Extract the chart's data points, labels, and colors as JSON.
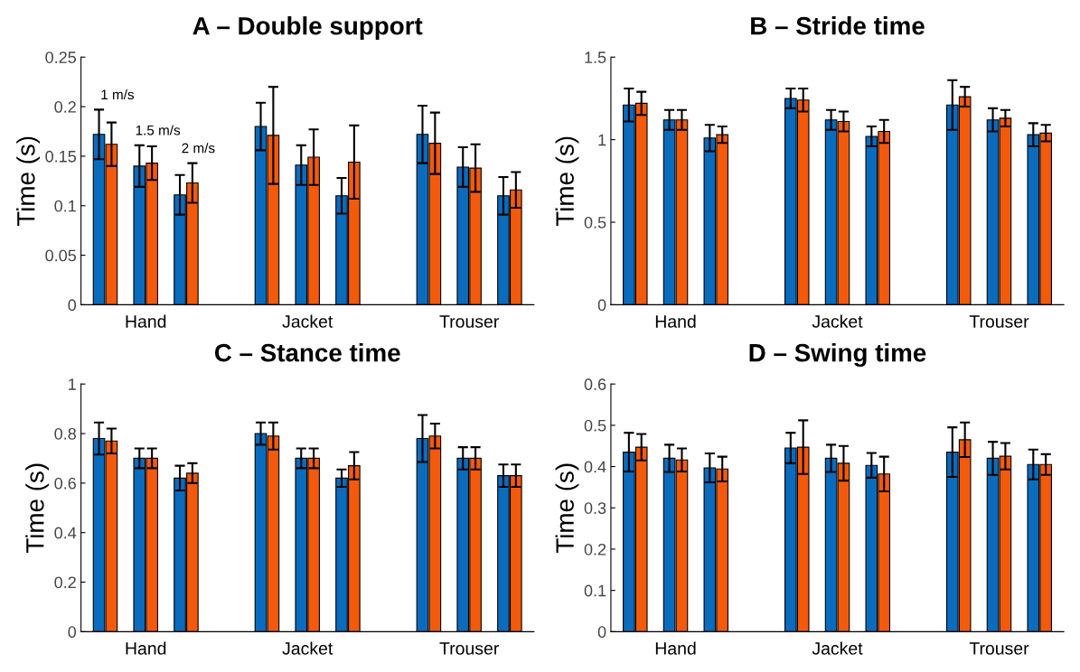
{
  "chart_data": [
    {
      "type": "bar",
      "title": "A – Double support",
      "ylabel": "Time (s)",
      "categories": [
        null,
        "Hand",
        null,
        null,
        "Jacket",
        null,
        null,
        "Trouser",
        null
      ],
      "series": [
        {
          "color": "#0b6bbd",
          "values": [
            0.172,
            0.14,
            0.111,
            0.18,
            0.141,
            0.11,
            0.172,
            0.139,
            0.11
          ],
          "errors": [
            0.025,
            0.021,
            0.02,
            0.024,
            0.02,
            0.018,
            0.029,
            0.02,
            0.019
          ]
        },
        {
          "color": "#f45a0c",
          "values": [
            0.162,
            0.143,
            0.123,
            0.171,
            0.149,
            0.144,
            0.163,
            0.138,
            0.116
          ],
          "errors": [
            0.022,
            0.017,
            0.02,
            0.049,
            0.028,
            0.037,
            0.031,
            0.024,
            0.018
          ]
        }
      ],
      "ylim": [
        0,
        0.25
      ],
      "yticks": [
        0,
        0.05,
        0.1,
        0.15,
        0.2,
        0.25
      ],
      "annotations": [
        "1 m/s",
        "1.5 m/s",
        "2 m/s"
      ]
    },
    {
      "type": "bar",
      "title": "B – Stride time",
      "ylabel": "Time (s)",
      "categories": [
        null,
        "Hand",
        null,
        null,
        "Jacket",
        null,
        null,
        "Trouser",
        null
      ],
      "series": [
        {
          "color": "#0b6bbd",
          "values": [
            1.21,
            1.12,
            1.01,
            1.25,
            1.12,
            1.02,
            1.21,
            1.12,
            1.03
          ],
          "errors": [
            0.1,
            0.06,
            0.08,
            0.06,
            0.06,
            0.06,
            0.15,
            0.07,
            0.07
          ]
        },
        {
          "color": "#f45a0c",
          "values": [
            1.22,
            1.12,
            1.03,
            1.24,
            1.11,
            1.05,
            1.26,
            1.13,
            1.04
          ],
          "errors": [
            0.07,
            0.06,
            0.05,
            0.07,
            0.06,
            0.07,
            0.06,
            0.05,
            0.05
          ]
        }
      ],
      "ylim": [
        0,
        1.5
      ],
      "yticks": [
        0,
        0.5,
        1,
        1.5
      ]
    },
    {
      "type": "bar",
      "title": "C – Stance time",
      "ylabel": "Time (s)",
      "categories": [
        null,
        "Hand",
        null,
        null,
        "Jacket",
        null,
        null,
        "Trouser",
        null
      ],
      "series": [
        {
          "color": "#0b6bbd",
          "values": [
            0.78,
            0.7,
            0.62,
            0.8,
            0.7,
            0.62,
            0.78,
            0.7,
            0.63
          ],
          "errors": [
            0.065,
            0.04,
            0.05,
            0.045,
            0.04,
            0.035,
            0.095,
            0.045,
            0.045
          ]
        },
        {
          "color": "#f45a0c",
          "values": [
            0.77,
            0.7,
            0.64,
            0.79,
            0.7,
            0.67,
            0.79,
            0.7,
            0.63
          ],
          "errors": [
            0.05,
            0.04,
            0.04,
            0.055,
            0.04,
            0.055,
            0.05,
            0.045,
            0.045
          ]
        }
      ],
      "ylim": [
        0,
        1
      ],
      "yticks": [
        0,
        0.2,
        0.4,
        0.6,
        0.8,
        1
      ]
    },
    {
      "type": "bar",
      "title": "D – Swing time",
      "ylabel": "Time (s)",
      "categories": [
        null,
        "Hand",
        null,
        null,
        "Jacket",
        null,
        null,
        "Trouser",
        null
      ],
      "series": [
        {
          "color": "#0b6bbd",
          "values": [
            0.435,
            0.42,
            0.397,
            0.445,
            0.42,
            0.403,
            0.435,
            0.42,
            0.405
          ],
          "errors": [
            0.047,
            0.033,
            0.035,
            0.037,
            0.033,
            0.03,
            0.06,
            0.04,
            0.036
          ]
        },
        {
          "color": "#f45a0c",
          "values": [
            0.447,
            0.416,
            0.394,
            0.447,
            0.408,
            0.382,
            0.465,
            0.425,
            0.405
          ],
          "errors": [
            0.032,
            0.028,
            0.03,
            0.065,
            0.042,
            0.042,
            0.042,
            0.032,
            0.025
          ]
        }
      ],
      "ylim": [
        0,
        0.6
      ],
      "yticks": [
        0,
        0.1,
        0.2,
        0.3,
        0.4,
        0.5,
        0.6
      ]
    }
  ]
}
